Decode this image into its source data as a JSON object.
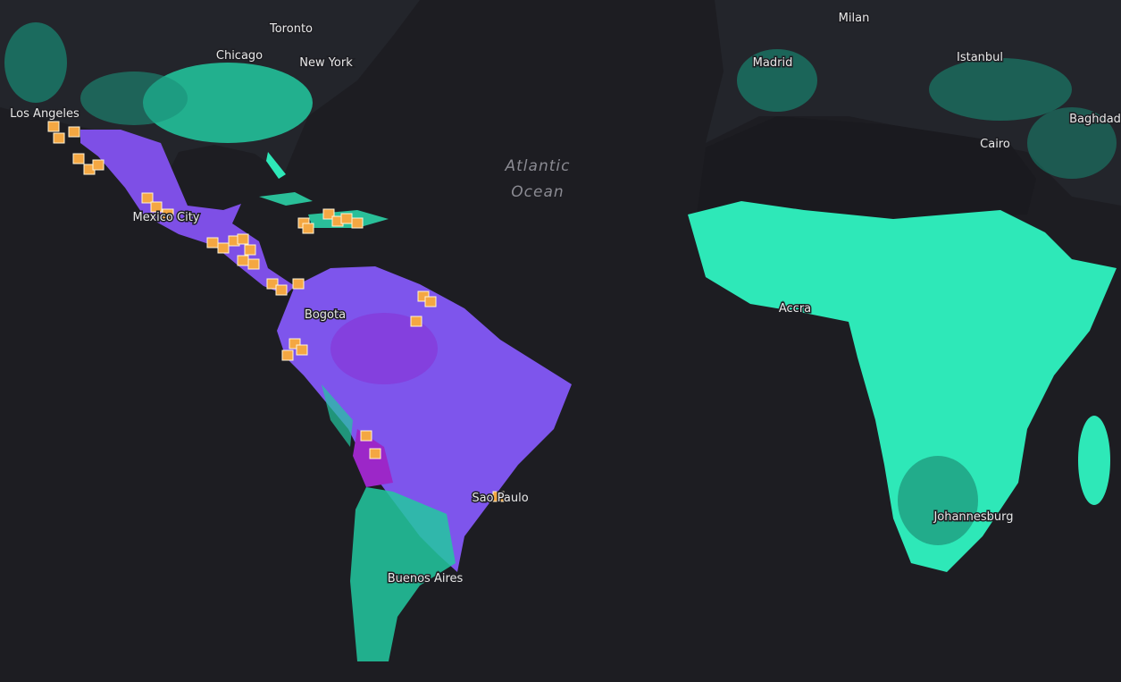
{
  "labels": {
    "cities": [
      "Toronto",
      "Chicago",
      "New York",
      "Los Angeles",
      "Mexico City",
      "Bogota",
      "Sao Paulo",
      "Buenos Aires",
      "Milan",
      "Madrid",
      "Istanbul",
      "Baghdad",
      "Cairo",
      "Accra",
      "Johannesburg"
    ],
    "ocean": [
      "Atlantic",
      "Ocean"
    ]
  }
}
